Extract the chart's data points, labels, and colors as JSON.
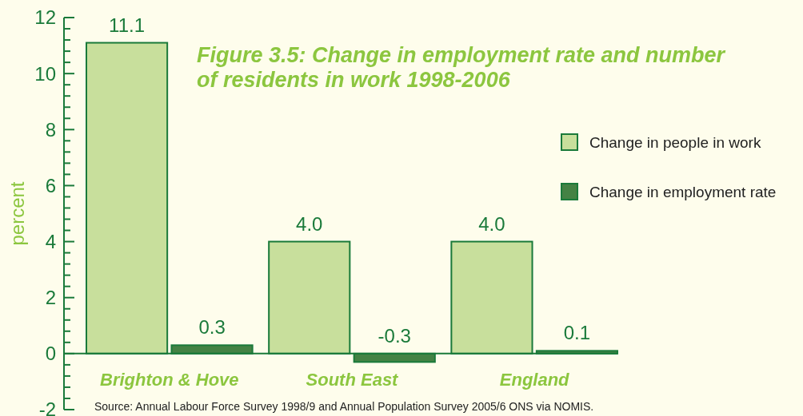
{
  "chart_data": {
    "type": "bar",
    "title": "Figure 3.5: Change in employment rate and number of residents in work 1998-2006",
    "ylabel": "percent",
    "categories": [
      "Brighton & Hove",
      "South East",
      "England"
    ],
    "series": [
      {
        "name": "Change in people in work",
        "color": "#c8df9c",
        "values": [
          11.1,
          4.0,
          4.0
        ],
        "value_labels": [
          "11.1",
          "4.0",
          "4.0"
        ]
      },
      {
        "name": "Change in employment rate",
        "color": "#448244",
        "values": [
          0.3,
          -0.3,
          0.1
        ],
        "value_labels": [
          "0.3",
          "-0.3",
          "0.1"
        ]
      }
    ],
    "ylim": [
      -2,
      12
    ],
    "yticks": [
      -2,
      {
        "value": -1.6,
        "label": null
      },
      {
        "value": -1.2,
        "label": null
      },
      {
        "value": -0.8,
        "label": null
      },
      {
        "value": -0.4,
        "label": null
      },
      0,
      {
        "value": 0.4,
        "label": null
      },
      {
        "value": 0.8,
        "label": null
      },
      {
        "value": 1.2,
        "label": null
      },
      {
        "value": 1.6,
        "label": null
      },
      2,
      {
        "value": 2.4,
        "label": null
      },
      {
        "value": 2.8,
        "label": null
      },
      {
        "value": 3.2,
        "label": null
      },
      {
        "value": 3.6,
        "label": null
      },
      4,
      {
        "value": 4.4,
        "label": null
      },
      {
        "value": 4.8,
        "label": null
      },
      {
        "value": 5.2,
        "label": null
      },
      {
        "value": 5.6,
        "label": null
      },
      6,
      {
        "value": 6.4,
        "label": null
      },
      {
        "value": 6.8,
        "label": null
      },
      {
        "value": 7.2,
        "label": null
      },
      {
        "value": 7.6,
        "label": null
      },
      8,
      {
        "value": 8.4,
        "label": null
      },
      {
        "value": 8.8,
        "label": null
      },
      {
        "value": 9.2,
        "label": null
      },
      {
        "value": 9.6,
        "label": null
      },
      10,
      {
        "value": 10.4,
        "label": null
      },
      {
        "value": 10.8,
        "label": null
      },
      {
        "value": 11.2,
        "label": null
      },
      {
        "value": 11.6,
        "label": null
      },
      12
    ],
    "legend": "right",
    "grid": false,
    "annotations": [
      "Source: Annual Labour Force Survey 1998/9 and Annual Population Survey 2005/6 ONS via NOMIS."
    ]
  }
}
